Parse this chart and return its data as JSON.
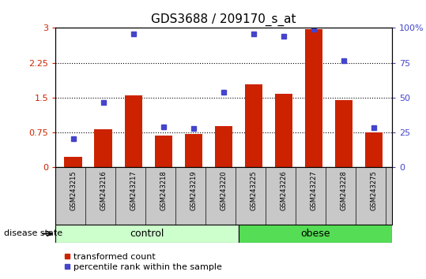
{
  "title": "GDS3688 / 209170_s_at",
  "samples": [
    "GSM243215",
    "GSM243216",
    "GSM243217",
    "GSM243218",
    "GSM243219",
    "GSM243220",
    "GSM243225",
    "GSM243226",
    "GSM243227",
    "GSM243228",
    "GSM243275"
  ],
  "bar_values": [
    0.22,
    0.82,
    1.55,
    0.68,
    0.72,
    0.88,
    1.78,
    1.58,
    2.97,
    1.44,
    0.75
  ],
  "dot_values": [
    0.62,
    1.4,
    2.87,
    0.87,
    0.84,
    1.62,
    2.87,
    2.82,
    2.98,
    2.3,
    0.86
  ],
  "bar_color": "#cc2200",
  "dot_color": "#4444cc",
  "ylim_left": [
    0,
    3
  ],
  "ylim_right": [
    0,
    100
  ],
  "yticks_left": [
    0,
    0.75,
    1.5,
    2.25,
    3
  ],
  "yticks_right": [
    0,
    25,
    50,
    75,
    100
  ],
  "ytick_labels_left": [
    "0",
    "0.75",
    "1.5",
    "2.25",
    "3"
  ],
  "ytick_labels_right": [
    "0",
    "25",
    "50",
    "75",
    "100%"
  ],
  "n_control": 6,
  "n_obese": 5,
  "control_label": "control",
  "obese_label": "obese",
  "disease_state_label": "disease state",
  "legend_bar_label": "transformed count",
  "legend_dot_label": "percentile rank within the sample",
  "control_color": "#ccffcc",
  "obese_color": "#55dd55",
  "xlabel_area_color": "#c8c8c8",
  "bg_color": "#ffffff",
  "title_fontsize": 11,
  "tick_fontsize": 8,
  "sample_fontsize": 6,
  "legend_fontsize": 8
}
